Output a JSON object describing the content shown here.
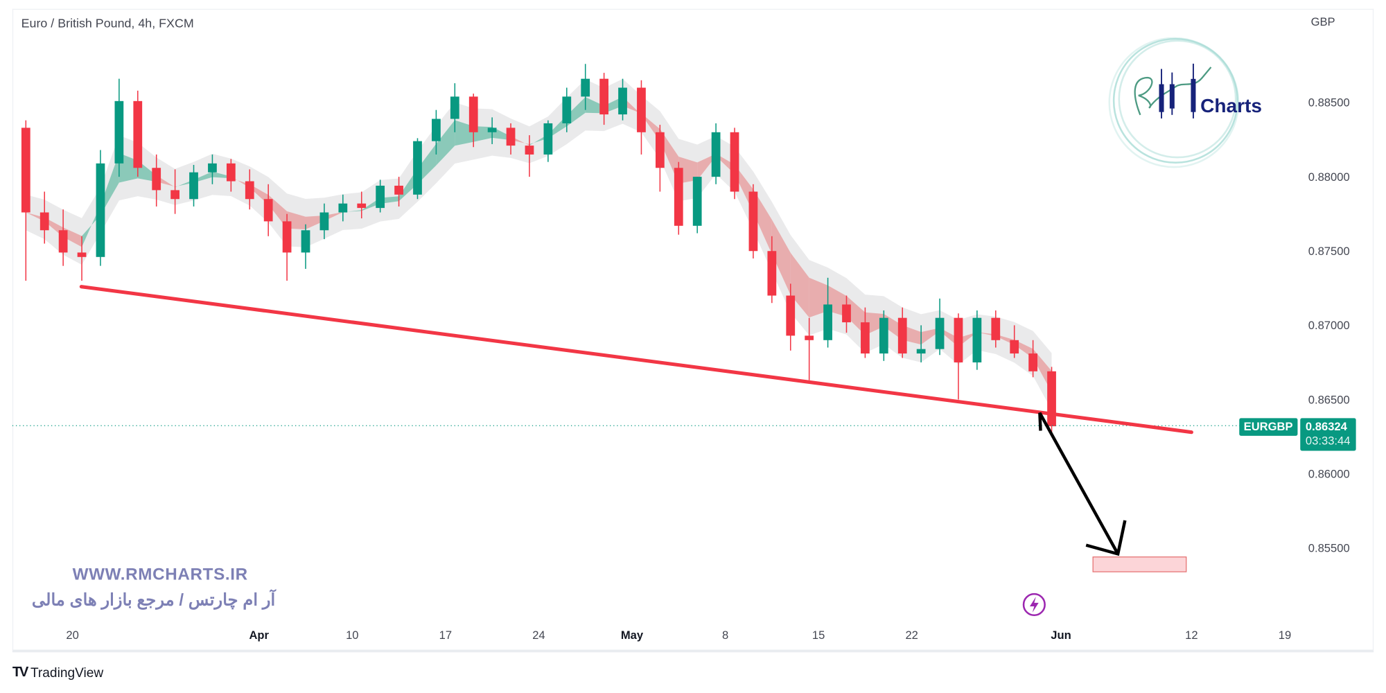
{
  "header": {
    "title": "Euro / British Pound, 4h, FXCM",
    "currency": "GBP"
  },
  "price_tag": {
    "symbol": "EURGBP",
    "price": "0.86324",
    "countdown": "03:33:44",
    "color": "#089981"
  },
  "watermark": {
    "url": "WWW.RMCHARTS.IR",
    "tagline": "آر ام چارتس / مرجع بازار های مالی",
    "logo_text": "RM Charts"
  },
  "footer": {
    "brand": "TradingView"
  },
  "icons": {
    "event": "lightning-icon",
    "footer_logo": "tradingview-logo-icon"
  },
  "chart_data": {
    "type": "candlestick",
    "title": "Euro / British Pound, 4h, FXCM",
    "ylabel": "GBP",
    "ylim": [
      0.8515,
      0.8885
    ],
    "grid": false,
    "colors": {
      "up": "#089981",
      "down": "#f23645",
      "trendline": "#f23645",
      "target_zone": "#f7a9af",
      "arrow": "#000000"
    },
    "y_ticks": [
      "0.88500",
      "0.88000",
      "0.87500",
      "0.87000",
      "0.86500",
      "0.86000",
      "0.85500"
    ],
    "x_ticks": [
      {
        "label": "20",
        "date": "2023-03-20",
        "major": false
      },
      {
        "label": "Apr",
        "date": "2023-04-01",
        "major": true
      },
      {
        "label": "10",
        "date": "2023-04-10",
        "major": false
      },
      {
        "label": "17",
        "date": "2023-04-17",
        "major": false
      },
      {
        "label": "24",
        "date": "2023-04-24",
        "major": false
      },
      {
        "label": "May",
        "date": "2023-05-01",
        "major": true
      },
      {
        "label": "8",
        "date": "2023-05-08",
        "major": false
      },
      {
        "label": "15",
        "date": "2023-05-15",
        "major": false
      },
      {
        "label": "22",
        "date": "2023-05-22",
        "major": false
      },
      {
        "label": "Jun",
        "date": "2023-06-01",
        "major": true
      },
      {
        "label": "12",
        "date": "2023-06-12",
        "major": false
      },
      {
        "label": "19",
        "date": "2023-06-19",
        "major": false
      }
    ],
    "candles_columns": [
      "date",
      "open",
      "high",
      "low",
      "close"
    ],
    "candles": [
      [
        "2023-03-15",
        0.8833,
        0.8838,
        0.873,
        0.8776
      ],
      [
        "2023-03-16",
        0.8776,
        0.879,
        0.8755,
        0.8764
      ],
      [
        "2023-03-17",
        0.8764,
        0.8778,
        0.874,
        0.8749
      ],
      [
        "2023-03-20",
        0.8749,
        0.876,
        0.873,
        0.8746
      ],
      [
        "2023-03-21",
        0.8746,
        0.8818,
        0.874,
        0.8809
      ],
      [
        "2023-03-22",
        0.8809,
        0.8866,
        0.88,
        0.8851
      ],
      [
        "2023-03-23",
        0.8851,
        0.8858,
        0.88,
        0.8806
      ],
      [
        "2023-03-24",
        0.8806,
        0.8815,
        0.878,
        0.8791
      ],
      [
        "2023-03-27",
        0.8791,
        0.8805,
        0.8775,
        0.8785
      ],
      [
        "2023-03-28",
        0.8785,
        0.8808,
        0.878,
        0.8803
      ],
      [
        "2023-03-29",
        0.8803,
        0.8815,
        0.8795,
        0.8809
      ],
      [
        "2023-03-30",
        0.8809,
        0.8812,
        0.879,
        0.8797
      ],
      [
        "2023-03-31",
        0.8797,
        0.8805,
        0.8778,
        0.8785
      ],
      [
        "2023-04-03",
        0.8785,
        0.8795,
        0.876,
        0.877
      ],
      [
        "2023-04-04",
        0.877,
        0.8775,
        0.873,
        0.8749
      ],
      [
        "2023-04-05",
        0.8749,
        0.8768,
        0.8738,
        0.8764
      ],
      [
        "2023-04-06",
        0.8764,
        0.8782,
        0.8758,
        0.8776
      ],
      [
        "2023-04-07",
        0.8776,
        0.8788,
        0.877,
        0.8782
      ],
      [
        "2023-04-10",
        0.8782,
        0.879,
        0.8772,
        0.8779
      ],
      [
        "2023-04-11",
        0.8779,
        0.8798,
        0.8776,
        0.8794
      ],
      [
        "2023-04-12",
        0.8794,
        0.88,
        0.878,
        0.8788
      ],
      [
        "2023-04-13",
        0.8788,
        0.8826,
        0.8785,
        0.8824
      ],
      [
        "2023-04-14",
        0.8824,
        0.8845,
        0.8815,
        0.8839
      ],
      [
        "2023-04-17",
        0.8839,
        0.8863,
        0.883,
        0.8854
      ],
      [
        "2023-04-18",
        0.8854,
        0.8856,
        0.882,
        0.883
      ],
      [
        "2023-04-19",
        0.883,
        0.884,
        0.8822,
        0.8833
      ],
      [
        "2023-04-20",
        0.8833,
        0.8836,
        0.8815,
        0.8821
      ],
      [
        "2023-04-21",
        0.8821,
        0.8828,
        0.88,
        0.8815
      ],
      [
        "2023-04-24",
        0.8815,
        0.8838,
        0.881,
        0.8836
      ],
      [
        "2023-04-25",
        0.8836,
        0.886,
        0.883,
        0.8854
      ],
      [
        "2023-04-26",
        0.8854,
        0.8876,
        0.8845,
        0.8866
      ],
      [
        "2023-04-27",
        0.8866,
        0.887,
        0.8835,
        0.8842
      ],
      [
        "2023-04-28",
        0.8842,
        0.8866,
        0.8838,
        0.886
      ],
      [
        "2023-05-01",
        0.886,
        0.8865,
        0.8815,
        0.883
      ],
      [
        "2023-05-02",
        0.883,
        0.8835,
        0.879,
        0.8806
      ],
      [
        "2023-05-03",
        0.8806,
        0.881,
        0.8761,
        0.8767
      ],
      [
        "2023-05-04",
        0.8767,
        0.88,
        0.8762,
        0.88
      ],
      [
        "2023-05-05",
        0.88,
        0.8836,
        0.8795,
        0.883
      ],
      [
        "2023-05-08",
        0.883,
        0.8833,
        0.8785,
        0.879
      ],
      [
        "2023-05-09",
        0.879,
        0.8795,
        0.8745,
        0.875
      ],
      [
        "2023-05-10",
        0.875,
        0.876,
        0.8715,
        0.872
      ],
      [
        "2023-05-11",
        0.872,
        0.8728,
        0.8683,
        0.8693
      ],
      [
        "2023-05-12",
        0.8693,
        0.8705,
        0.8663,
        0.869
      ],
      [
        "2023-05-15",
        0.869,
        0.8732,
        0.8685,
        0.8714
      ],
      [
        "2023-05-16",
        0.8714,
        0.872,
        0.8695,
        0.8702
      ],
      [
        "2023-05-17",
        0.8702,
        0.8712,
        0.8678,
        0.8681
      ],
      [
        "2023-05-18",
        0.8681,
        0.871,
        0.8676,
        0.8705
      ],
      [
        "2023-05-19",
        0.8705,
        0.8712,
        0.8678,
        0.8681
      ],
      [
        "2023-05-22",
        0.8681,
        0.87,
        0.8675,
        0.8684
      ],
      [
        "2023-05-23",
        0.8684,
        0.8718,
        0.868,
        0.8705
      ],
      [
        "2023-05-24",
        0.8705,
        0.8708,
        0.865,
        0.8675
      ],
      [
        "2023-05-25",
        0.8675,
        0.871,
        0.867,
        0.8705
      ],
      [
        "2023-05-26",
        0.8705,
        0.871,
        0.8685,
        0.869
      ],
      [
        "2023-05-29",
        0.869,
        0.87,
        0.8678,
        0.8681
      ],
      [
        "2023-05-30",
        0.8681,
        0.869,
        0.8665,
        0.8669
      ],
      [
        "2023-05-31",
        0.8669,
        0.8672,
        0.8628,
        0.8632
      ]
    ],
    "last_price": 0.86324,
    "annotations": {
      "trendline": [
        [
          "2023-03-20",
          0.8726
        ],
        [
          "2023-06-12",
          0.8628
        ]
      ],
      "arrow": [
        [
          "2023-05-31",
          0.8629
        ],
        [
          "2023-06-01",
          0.8641
        ],
        [
          "2023-06-07",
          0.8546
        ]
      ],
      "target_zone": {
        "from": "2023-06-05",
        "to": "2023-06-12",
        "top": 0.8544,
        "bottom": 0.8534
      }
    }
  }
}
